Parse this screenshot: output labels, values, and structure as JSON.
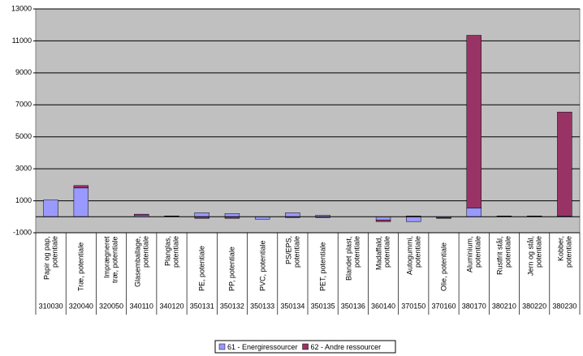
{
  "chart_data": {
    "type": "bar",
    "stacked": true,
    "categories": [
      "Papir og pap, potentiale",
      "Træ, potentiale",
      "Imprægneret træ, potentiale",
      "Glasemballage, potentiale",
      "Planglas, potentiale",
      "PE, potentiale",
      "PP, potentiale",
      "PVC, potentiale",
      "PS/EPS, potentiale",
      "PET, potentiale",
      "Blandet plast, potentiale",
      "Madaffald, potentiale",
      "Autogummi, potentiale",
      "Olie, potentiale",
      "Aluminium, potentiale",
      "Rustfrit stål, potentiale",
      "Jern og stål, potentiale",
      "Kobber, potentiale"
    ],
    "codes": [
      "310030",
      "320040",
      "320050",
      "340110",
      "340120",
      "350131",
      "350132",
      "350133",
      "350134",
      "350135",
      "350136",
      "360140",
      "370150",
      "370160",
      "380170",
      "380210",
      "380220",
      "380230"
    ],
    "series": [
      {
        "name": "61 - Energiressourcer",
        "color": "#9999ff",
        "values": [
          1050,
          1800,
          0,
          100,
          30,
          250,
          200,
          -150,
          250,
          100,
          0,
          -200,
          -300,
          -50,
          550,
          20,
          20,
          50
        ]
      },
      {
        "name": "62 - Andre ressourcer",
        "color": "#993366",
        "values": [
          0,
          150,
          0,
          60,
          20,
          -100,
          -100,
          0,
          -50,
          -50,
          0,
          -100,
          50,
          -50,
          10800,
          30,
          30,
          6500
        ]
      }
    ],
    "ylim": [
      -1000,
      13000
    ],
    "yticks": [
      -1000,
      1000,
      3000,
      5000,
      7000,
      9000,
      11000,
      13000
    ],
    "grid": true,
    "legend": "bottom",
    "plot_background": "#c0c0c0"
  }
}
